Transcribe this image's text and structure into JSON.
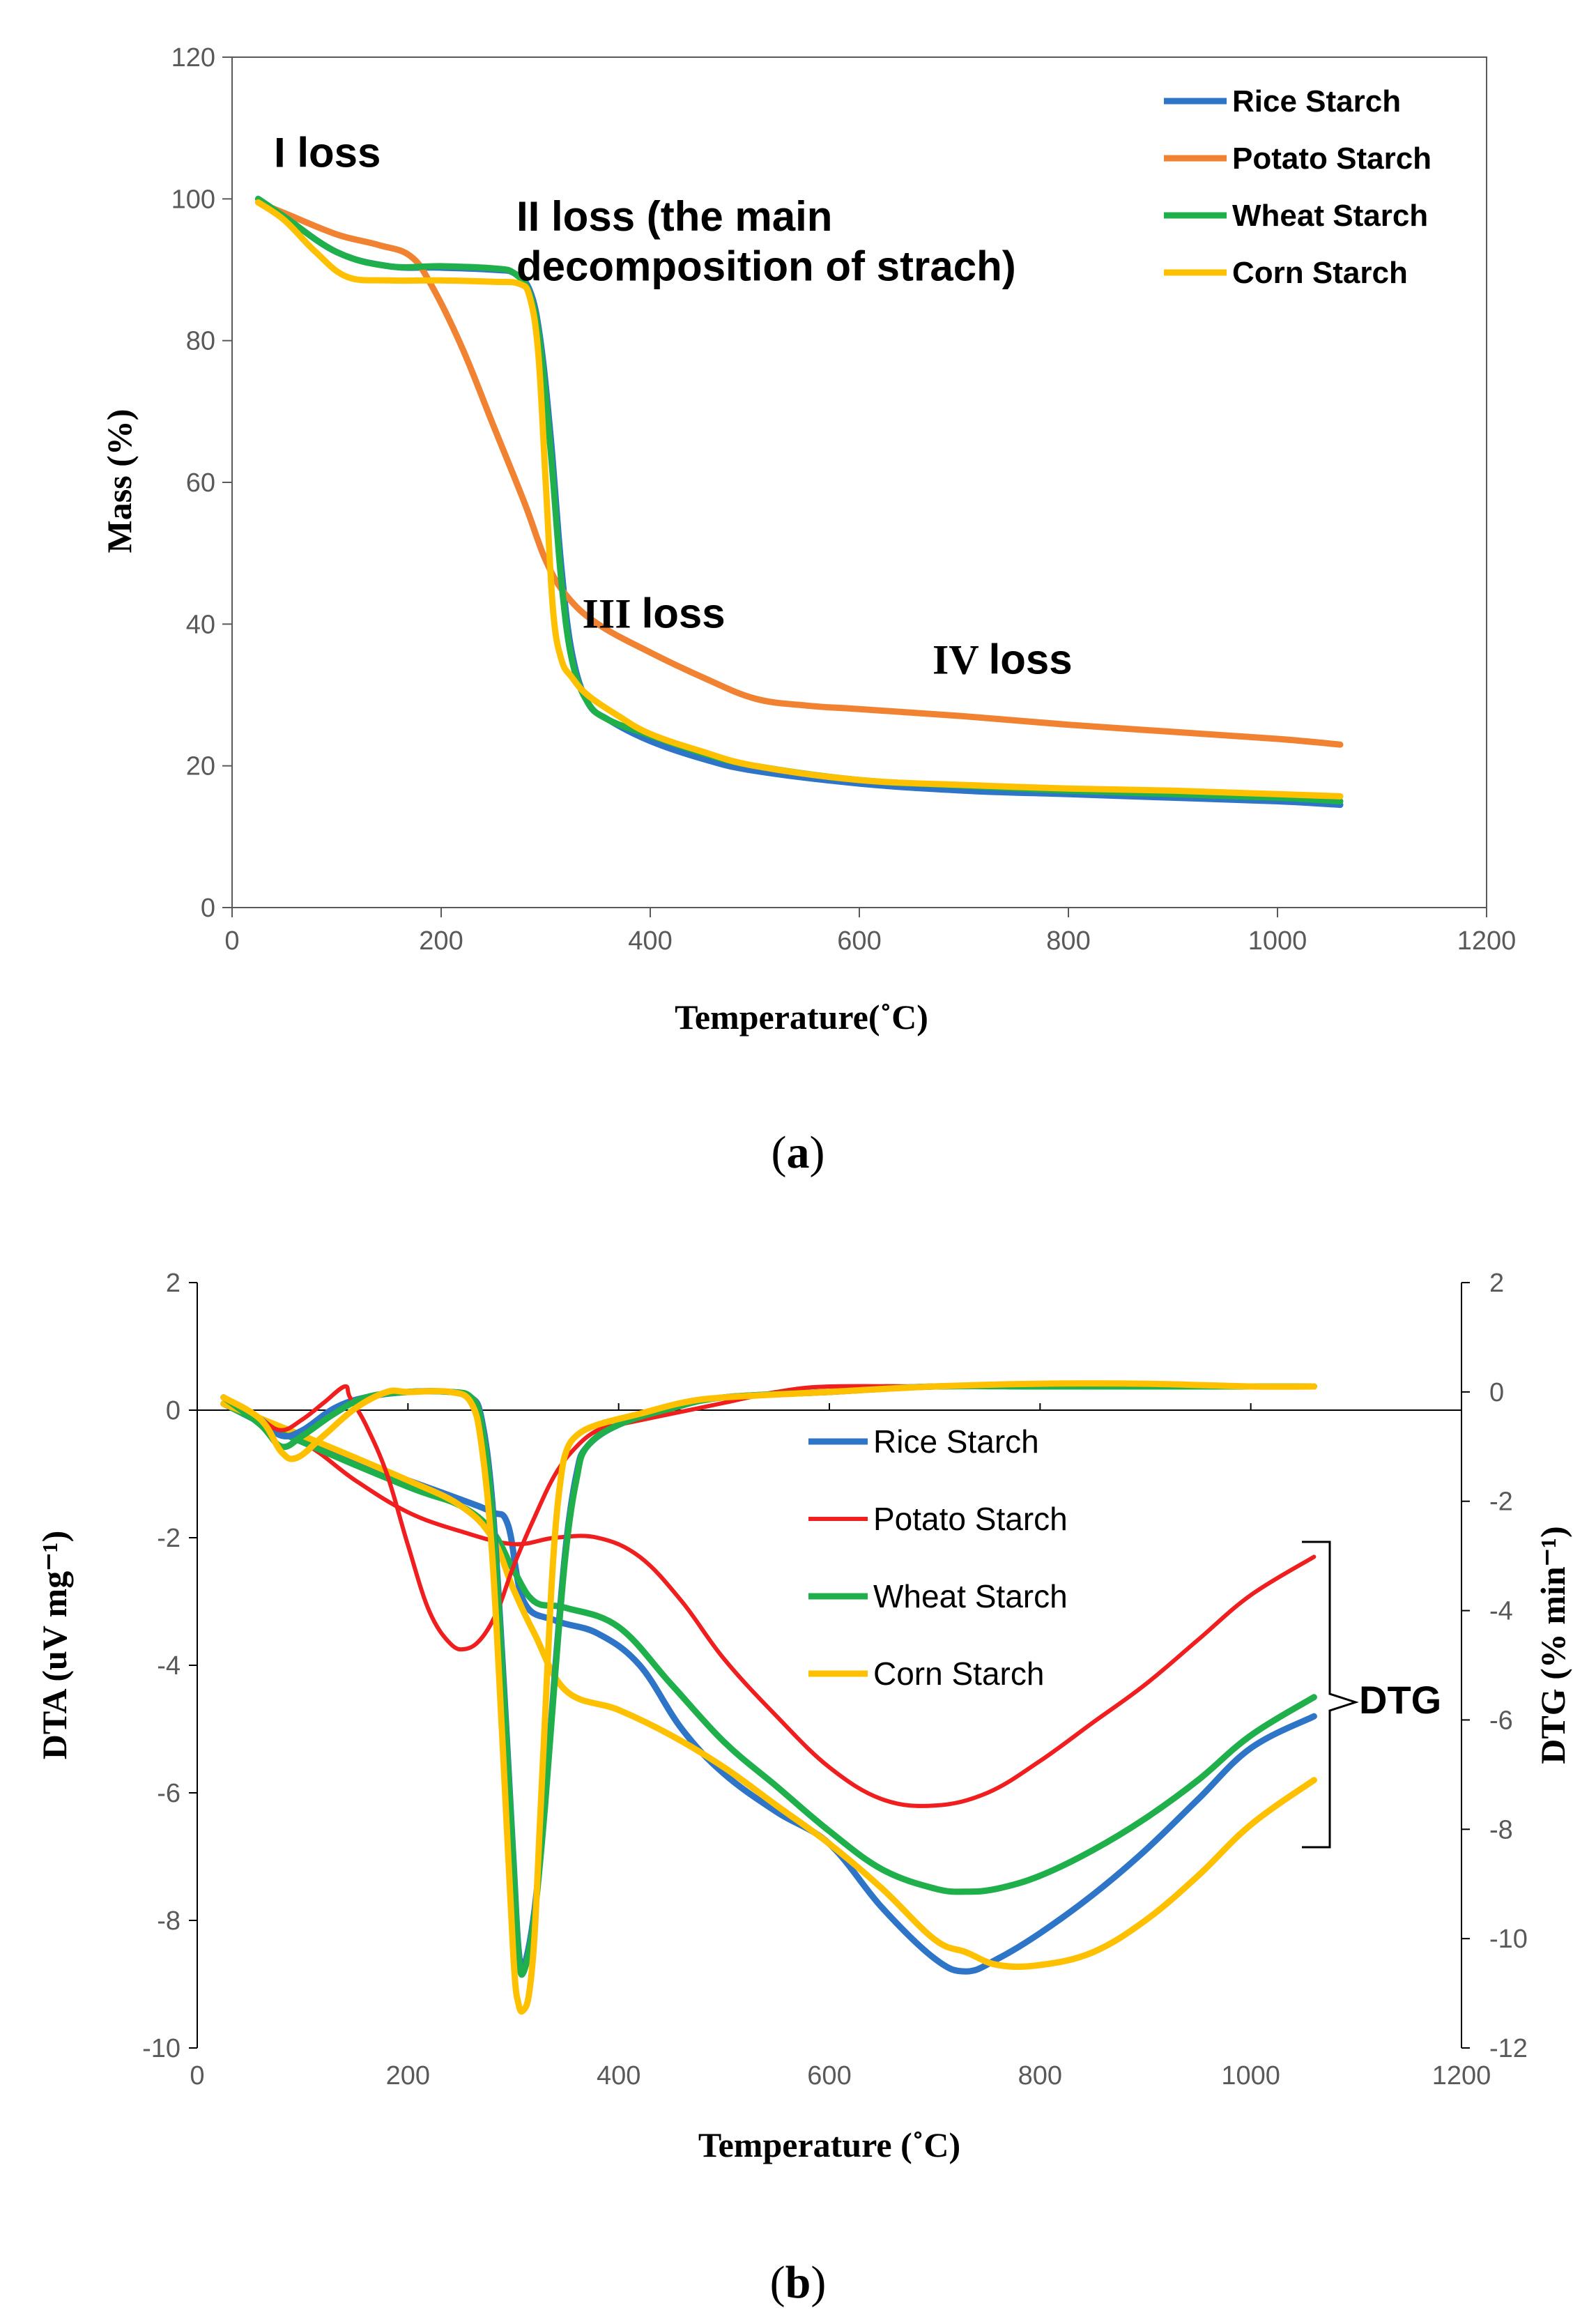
{
  "colors": {
    "rice": "#2E75C7",
    "potato_a": "#F08232",
    "potato_b": "#F01E1E",
    "wheat": "#1FAF4B",
    "corn": "#FFC000"
  },
  "chart_data": [
    {
      "panel": "(a)",
      "panel_letter": "a",
      "type": "line",
      "xlabel": "Temperature(˚C)",
      "ylabel": "Mass (%)",
      "xlim": [
        0,
        1200
      ],
      "ylim": [
        0,
        120
      ],
      "xticks": [
        0,
        200,
        400,
        600,
        800,
        1000,
        1200
      ],
      "yticks": [
        0,
        20,
        40,
        60,
        80,
        100,
        120
      ],
      "legend": "top-right",
      "grid": false,
      "annotations": [
        {
          "text": "I loss",
          "x": 40,
          "y": 104.5
        },
        {
          "text": "II loss (the main",
          "x": 272,
          "y": 95.5
        },
        {
          "text": "decomposition of strach)",
          "x": 272,
          "y": 88.5
        },
        {
          "text": "III loss",
          "x": 335,
          "y": 39.5
        },
        {
          "text": "IV loss",
          "x": 670,
          "y": 33
        }
      ],
      "series": [
        {
          "name": "Rice Starch",
          "color_key": "rice",
          "x": [
            25,
            50,
            100,
            150,
            200,
            250,
            270,
            285,
            295,
            305,
            315,
            325,
            340,
            360,
            400,
            450,
            500,
            600,
            700,
            800,
            900,
            1000,
            1060
          ],
          "y": [
            100,
            97.5,
            92.5,
            90.5,
            90.3,
            90,
            89.5,
            87,
            80,
            66,
            48,
            36,
            29,
            26.5,
            23.5,
            21,
            19.3,
            17.5,
            16.5,
            16,
            15.5,
            15,
            14.5
          ]
        },
        {
          "name": "Potato Starch",
          "color_key": "potato_a",
          "x": [
            25,
            50,
            100,
            140,
            170,
            190,
            220,
            250,
            280,
            300,
            320,
            350,
            400,
            450,
            500,
            550,
            600,
            700,
            800,
            900,
            1000,
            1060
          ],
          "y": [
            99.5,
            98,
            95,
            93.5,
            92,
            88,
            79,
            68,
            57,
            49,
            44,
            40,
            36,
            32.5,
            29.5,
            28.5,
            28,
            27,
            25.8,
            24.8,
            23.8,
            23
          ]
        },
        {
          "name": "Wheat Starch",
          "color_key": "wheat",
          "x": [
            25,
            50,
            100,
            150,
            200,
            250,
            270,
            285,
            295,
            305,
            315,
            325,
            340,
            360,
            400,
            450,
            500,
            600,
            700,
            800,
            900,
            1000,
            1060
          ],
          "y": [
            100,
            97.5,
            92.5,
            90.5,
            90.5,
            90.2,
            89.5,
            86.5,
            79,
            64,
            46,
            35,
            29,
            26.5,
            24.3,
            21.8,
            20,
            18,
            17.2,
            16.5,
            16,
            15.5,
            15
          ]
        },
        {
          "name": "Corn Starch",
          "color_key": "corn",
          "x": [
            25,
            50,
            80,
            110,
            150,
            200,
            250,
            275,
            285,
            293,
            300,
            307,
            315,
            325,
            340,
            370,
            400,
            450,
            500,
            600,
            700,
            800,
            900,
            1000,
            1060
          ],
          "y": [
            99.5,
            97,
            92.5,
            89,
            88.5,
            88.5,
            88.3,
            88,
            86,
            78,
            60,
            42,
            35,
            32.5,
            30,
            27,
            24.5,
            22,
            20,
            18,
            17.3,
            16.8,
            16.5,
            16,
            15.7
          ]
        }
      ]
    },
    {
      "panel": "(b)",
      "panel_letter": "b",
      "type": "line",
      "xlabel": "Temperature (˚C)",
      "ylabel": "DTA (uV mg⁻¹)",
      "ylabel2": "DTG (% min⁻¹)",
      "xlim": [
        0,
        1200
      ],
      "ylim": [
        -10,
        2
      ],
      "ylim2": [
        -12,
        2
      ],
      "xticks": [
        0,
        200,
        400,
        600,
        800,
        1000,
        1200
      ],
      "yticks": [
        -10,
        -8,
        -6,
        -4,
        -2,
        0,
        2
      ],
      "yticks2": [
        -12,
        -10,
        -8,
        -6,
        -4,
        -2,
        0,
        2
      ],
      "legend": "center",
      "grid": false,
      "annotations": [
        {
          "text": "DTG"
        }
      ],
      "series": [
        {
          "name": "Rice Starch",
          "color_key": "rice",
          "axis": "left",
          "x": [
            25,
            100,
            200,
            250,
            280,
            295,
            310,
            340,
            380,
            420,
            460,
            500,
            550,
            600,
            650,
            700,
            730,
            760,
            800,
            850,
            900,
            950,
            1000,
            1060
          ],
          "y": [
            0.1,
            -0.5,
            -1.1,
            -1.4,
            -1.6,
            -1.8,
            -3.0,
            -3.3,
            -3.5,
            -4.0,
            -5.0,
            -5.7,
            -6.3,
            -6.8,
            -7.8,
            -8.6,
            -8.8,
            -8.6,
            -8.2,
            -7.6,
            -6.9,
            -6.1,
            -5.3,
            -4.8
          ]
        },
        {
          "name": "Potato Starch",
          "color_key": "potato_b",
          "axis": "left",
          "x": [
            25,
            100,
            150,
            200,
            250,
            300,
            340,
            380,
            420,
            460,
            500,
            550,
            600,
            650,
            700,
            750,
            800,
            850,
            900,
            950,
            1000,
            1060
          ],
          "y": [
            0.1,
            -0.5,
            -1.1,
            -1.6,
            -1.9,
            -2.1,
            -2.0,
            -2.0,
            -2.3,
            -3.0,
            -3.9,
            -4.8,
            -5.6,
            -6.1,
            -6.2,
            -6.0,
            -5.5,
            -4.9,
            -4.3,
            -3.6,
            -2.9,
            -2.3
          ]
        },
        {
          "name": "Wheat Starch",
          "color_key": "wheat",
          "axis": "left",
          "x": [
            25,
            100,
            200,
            250,
            280,
            300,
            320,
            350,
            400,
            450,
            500,
            550,
            600,
            650,
            700,
            730,
            760,
            800,
            850,
            900,
            950,
            1000,
            1060
          ],
          "y": [
            0.1,
            -0.5,
            -1.2,
            -1.5,
            -1.9,
            -2.5,
            -3.0,
            -3.1,
            -3.4,
            -4.3,
            -5.2,
            -5.9,
            -6.6,
            -7.2,
            -7.5,
            -7.55,
            -7.5,
            -7.3,
            -6.9,
            -6.4,
            -5.8,
            -5.1,
            -4.5
          ]
        },
        {
          "name": "Corn Starch",
          "color_key": "corn",
          "axis": "left",
          "x": [
            25,
            100,
            200,
            250,
            280,
            300,
            320,
            350,
            400,
            450,
            500,
            550,
            600,
            650,
            700,
            730,
            760,
            800,
            850,
            900,
            950,
            1000,
            1060
          ],
          "y": [
            0.1,
            -0.4,
            -1.1,
            -1.5,
            -2.0,
            -2.8,
            -3.5,
            -4.4,
            -4.7,
            -5.1,
            -5.6,
            -6.2,
            -6.8,
            -7.5,
            -8.3,
            -8.5,
            -8.7,
            -8.7,
            -8.5,
            -8.0,
            -7.3,
            -6.5,
            -5.8
          ]
        },
        {
          "name": "Rice Starch DTG",
          "color_key": "rice",
          "axis": "right",
          "x": [
            25,
            60,
            80,
            100,
            130,
            160,
            200,
            240,
            260,
            270,
            280,
            290,
            300,
            305,
            310,
            320,
            330,
            340,
            350,
            360,
            370,
            400,
            450,
            500,
            600,
            700,
            800,
            900,
            1000,
            1060
          ],
          "y": [
            -0.1,
            -0.5,
            -0.8,
            -0.7,
            -0.3,
            -0.1,
            0,
            0,
            -0.1,
            -0.5,
            -2,
            -5,
            -8.5,
            -10.2,
            -10.5,
            -9.5,
            -7.5,
            -5.0,
            -2.8,
            -1.5,
            -1.0,
            -0.6,
            -0.3,
            -0.1,
            0,
            0.1,
            0.1,
            0.1,
            0.1,
            0.1
          ]
        },
        {
          "name": "Potato Starch DTG",
          "color_key": "potato_b",
          "axis": "right",
          "x": [
            25,
            60,
            80,
            100,
            120,
            140,
            145,
            160,
            180,
            200,
            220,
            240,
            255,
            270,
            285,
            300,
            320,
            340,
            360,
            380,
            400,
            450,
            500,
            550,
            600,
            700,
            800,
            900,
            1000,
            1060
          ],
          "y": [
            -0.1,
            -0.5,
            -0.7,
            -0.5,
            -0.2,
            0.1,
            -0.1,
            -0.6,
            -1.5,
            -2.8,
            -4.0,
            -4.6,
            -4.7,
            -4.5,
            -4.0,
            -3.2,
            -2.3,
            -1.5,
            -1.0,
            -0.7,
            -0.6,
            -0.4,
            -0.2,
            0,
            0.1,
            0.1,
            0.1,
            0.15,
            0.1,
            0.1
          ]
        },
        {
          "name": "Wheat Starch DTG",
          "color_key": "wheat",
          "axis": "right",
          "x": [
            25,
            60,
            80,
            100,
            130,
            160,
            200,
            240,
            260,
            270,
            280,
            290,
            300,
            305,
            310,
            320,
            330,
            340,
            350,
            360,
            370,
            400,
            450,
            500,
            600,
            700,
            800,
            900,
            1000,
            1060
          ],
          "y": [
            -0.1,
            -0.6,
            -1.0,
            -0.8,
            -0.4,
            -0.1,
            0,
            0,
            -0.1,
            -0.6,
            -2.2,
            -5.2,
            -8.6,
            -10.3,
            -10.6,
            -9.6,
            -7.6,
            -5.1,
            -2.9,
            -1.6,
            -1.0,
            -0.6,
            -0.3,
            -0.1,
            0,
            0.1,
            0.1,
            0.1,
            0.1,
            0.1
          ]
        },
        {
          "name": "Corn Starch DTG",
          "color_key": "corn",
          "axis": "right",
          "x": [
            25,
            60,
            80,
            95,
            120,
            150,
            180,
            200,
            240,
            260,
            270,
            280,
            290,
            300,
            305,
            310,
            315,
            320,
            325,
            330,
            335,
            340,
            345,
            350,
            360,
            380,
            420,
            460,
            500,
            600,
            700,
            800,
            900,
            1000,
            1060
          ],
          "y": [
            -0.1,
            -0.5,
            -1.1,
            -1.2,
            -0.8,
            -0.3,
            0,
            0,
            0,
            -0.2,
            -1.0,
            -3.0,
            -6.5,
            -10.3,
            -11.2,
            -11.3,
            -11.0,
            -10.0,
            -8.0,
            -6.0,
            -4.0,
            -2.5,
            -1.6,
            -1.1,
            -0.8,
            -0.6,
            -0.4,
            -0.2,
            -0.1,
            0,
            0.1,
            0.15,
            0.15,
            0.1,
            0.1
          ]
        }
      ]
    }
  ]
}
